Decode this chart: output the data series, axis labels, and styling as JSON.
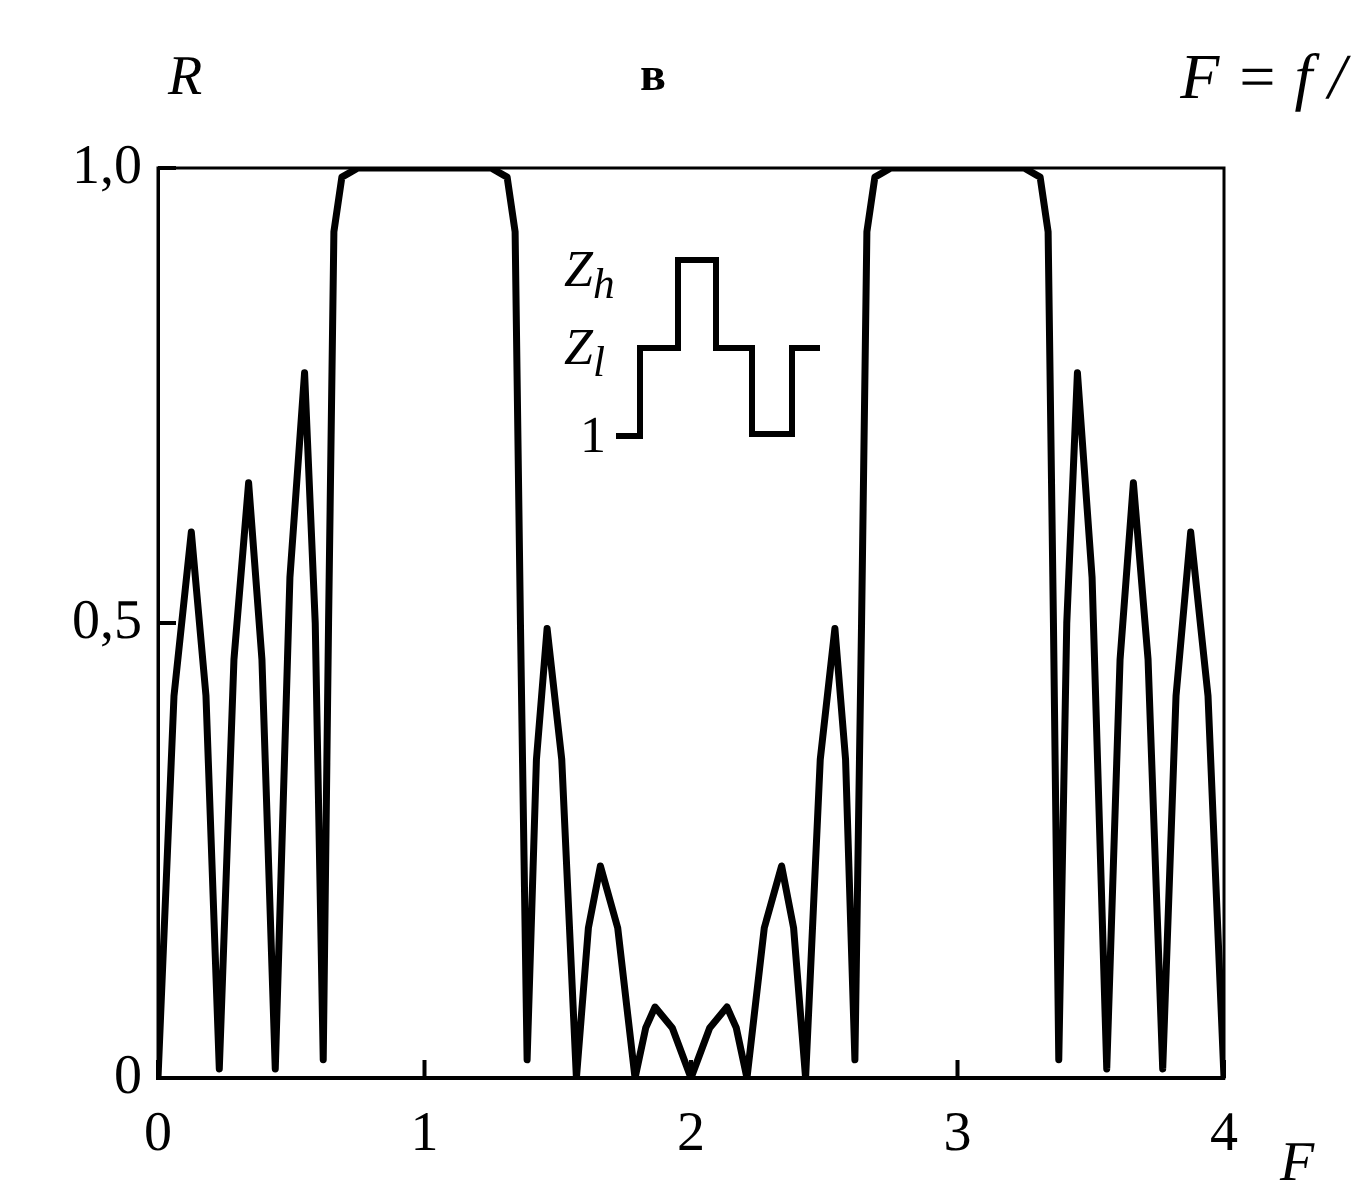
{
  "chart_data": {
    "type": "line",
    "title": "в",
    "xlabel": "F",
    "ylabel": "R",
    "annotations": [
      "F = f /",
      "Z$_{h}$",
      "Z$_{l}$",
      "1"
    ],
    "x": [
      0,
      0.06,
      0.125,
      0.18,
      0.23,
      0.285,
      0.34,
      0.39,
      0.44,
      0.495,
      0.55,
      0.59,
      0.62,
      0.64,
      0.66,
      0.69,
      0.75,
      1.0,
      1.25,
      1.31,
      1.34,
      1.36,
      1.385,
      1.42,
      1.46,
      1.515,
      1.57,
      1.615,
      1.66,
      1.725,
      1.79,
      1.83,
      1.865,
      1.93,
      2.0,
      2.07,
      2.135,
      2.17,
      2.21,
      2.275,
      2.34,
      2.385,
      2.43,
      2.485,
      2.54,
      2.58,
      2.615,
      2.64,
      2.66,
      2.69,
      2.75,
      3.0,
      3.25,
      3.31,
      3.34,
      3.36,
      3.38,
      3.41,
      3.45,
      3.505,
      3.56,
      3.61,
      3.66,
      3.715,
      3.77,
      3.82,
      3.875,
      3.94,
      4.0
    ],
    "series": [
      {
        "color": "#000000",
        "values": [
          0,
          0.42,
          0.6,
          0.42,
          0.01,
          0.46,
          0.654,
          0.46,
          0.01,
          0.55,
          0.775,
          0.5,
          0.02,
          0.5,
          0.93,
          0.99,
          1.0,
          1.0,
          1.0,
          0.99,
          0.93,
          0.5,
          0.02,
          0.35,
          0.494,
          0.35,
          0,
          0.165,
          0.233,
          0.165,
          0,
          0.055,
          0.078,
          0.055,
          0,
          0.055,
          0.078,
          0.055,
          0,
          0.165,
          0.233,
          0.165,
          0,
          0.35,
          0.494,
          0.35,
          0.02,
          0.5,
          0.93,
          0.99,
          1.0,
          1.0,
          1.0,
          0.99,
          0.93,
          0.5,
          0.02,
          0.5,
          0.775,
          0.55,
          0.01,
          0.46,
          0.654,
          0.46,
          0.01,
          0.42,
          0.6,
          0.42,
          0
        ]
      }
    ],
    "xlim": [
      0,
      4
    ],
    "ylim": [
      0,
      1
    ],
    "xticks": [
      0,
      1,
      2,
      3,
      4
    ],
    "yticks": [
      0,
      {
        "value": 0.5,
        "label": "0,5"
      },
      {
        "value": 1,
        "label": "1,0"
      }
    ],
    "grid": false,
    "legend": false,
    "marker": "none",
    "line_style": "solid"
  }
}
